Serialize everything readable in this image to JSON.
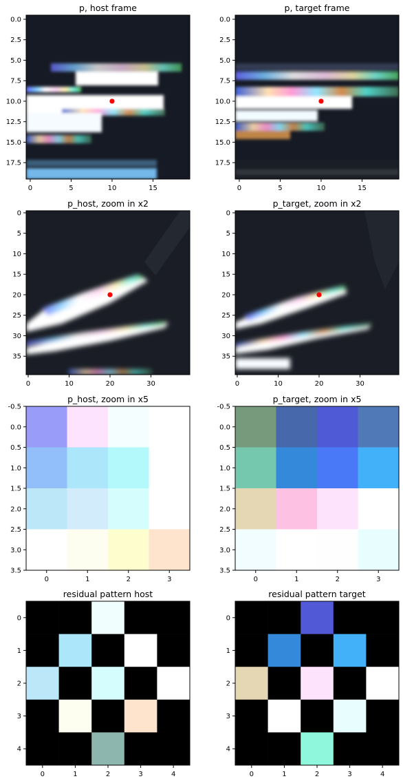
{
  "figure": {
    "colors": {
      "dark": "#141620",
      "axis": "#000000"
    }
  },
  "chart_data": [
    {
      "type": "heatmap",
      "title": "p, host frame",
      "grid": false,
      "ticks": {
        "x": [
          "0",
          "5",
          "10",
          "15"
        ],
        "y": [
          "0.0",
          "2.5",
          "5.0",
          "7.5",
          "10.0",
          "12.5",
          "15.0",
          "17.5"
        ]
      },
      "xlim": [
        -0.5,
        19.5
      ],
      "ylim": [
        19.5,
        -0.5
      ],
      "marker": {
        "x": 10,
        "y": 10,
        "color": "#ff0000"
      },
      "image": "20x20 camera patch: dark background with a bright white streak across rows 7-14 with colored fringes (blue, cyan, pink, yellow, green); colored row near y=5; light blue band near y=18-19"
    },
    {
      "type": "heatmap",
      "title": "p, target frame",
      "grid": false,
      "ticks": {
        "x": [
          "0",
          "5",
          "10",
          "15"
        ],
        "y": [
          "0.0",
          "2.5",
          "5.0",
          "7.5",
          "10.0",
          "12.5",
          "15.0",
          "17.5"
        ]
      },
      "xlim": [
        -0.5,
        19.5
      ],
      "ylim": [
        19.5,
        -0.5
      ],
      "marker": {
        "x": 10,
        "y": 10,
        "color": "#ff0000"
      },
      "image": "20x20 camera patch: dark background with colored band near y=8-9 and bright white streak across rows 10-13 with blue, orange and yellow fringes"
    },
    {
      "type": "heatmap",
      "title": "p_host, zoom in x2",
      "grid": false,
      "ticks": {
        "x": [
          "0",
          "10",
          "20",
          "30"
        ],
        "y": [
          "0",
          "5",
          "10",
          "15",
          "20",
          "25",
          "30",
          "35"
        ]
      },
      "xlim": [
        -0.5,
        39.5
      ],
      "ylim": [
        39.5,
        -0.5
      ],
      "marker": {
        "x": 20,
        "y": 20,
        "color": "#ff0000"
      },
      "image": "40x40 zoomed patch: dark background with two diagonal bright white streaks rising to the right with colorful fringes"
    },
    {
      "type": "heatmap",
      "title": "p_target, zoom in x2",
      "grid": false,
      "ticks": {
        "x": [
          "0",
          "10",
          "20",
          "30"
        ],
        "y": [
          "0",
          "5",
          "10",
          "15",
          "20",
          "25",
          "30",
          "35"
        ]
      },
      "xlim": [
        -0.5,
        39.5
      ],
      "ylim": [
        39.5,
        -0.5
      ],
      "marker": {
        "x": 20,
        "y": 20,
        "color": "#ff0000"
      },
      "image": "40x40 zoomed patch: dark background with two thinner diagonal bright streaks rising to the right with colorful fringes"
    },
    {
      "type": "heatmap",
      "title": "p_host, zoom in x5",
      "grid": false,
      "ticks": {
        "x": [
          "0",
          "1",
          "2",
          "3"
        ],
        "y": [
          "-0.5",
          "0.0",
          "0.5",
          "1.0",
          "1.5",
          "2.0",
          "2.5",
          "3.0",
          "3.5"
        ]
      },
      "xlim": [
        -0.5,
        3.5
      ],
      "ylim": [
        3.5,
        -0.5
      ],
      "cells": [
        [
          "#9a9cfa",
          "#fde3fd",
          "#f5feff",
          "#ffffff"
        ],
        [
          "#92befa",
          "#ace6fb",
          "#b3f9fb",
          "#ffffff"
        ],
        [
          "#bbe7f9",
          "#d2ecfc",
          "#d6fdfd",
          "#ffffff"
        ],
        [
          "#ffffff",
          "#fefef0",
          "#fefdcd",
          "#fee4cd"
        ]
      ]
    },
    {
      "type": "heatmap",
      "title": "p_target, zoom in x5",
      "grid": false,
      "ticks": {
        "x": [
          "0",
          "1",
          "2",
          "3"
        ],
        "y": [
          "-0.5",
          "0.0",
          "0.5",
          "1.0",
          "1.5",
          "2.0",
          "2.5",
          "3.0",
          "3.5"
        ]
      },
      "xlim": [
        -0.5,
        3.5
      ],
      "ylim": [
        3.5,
        -0.5
      ],
      "cells": [
        [
          "#789a7c",
          "#4768ab",
          "#4f5ad6",
          "#4f7ab7"
        ],
        [
          "#75c8ae",
          "#3589db",
          "#4a79f8",
          "#43b0fa"
        ],
        [
          "#e6d7b4",
          "#fdc2e3",
          "#fee3fd",
          "#ffffff"
        ],
        [
          "#f1fdfe",
          "#ffffff",
          "#fefefe",
          "#e8fdfe"
        ]
      ]
    },
    {
      "type": "heatmap",
      "title": "residual pattern host",
      "grid": false,
      "ticks": {
        "x": [
          "0",
          "1",
          "2",
          "3",
          "4"
        ],
        "y": [
          "0",
          "1",
          "2",
          "3",
          "4"
        ]
      },
      "xlim": [
        -0.5,
        4.5
      ],
      "ylim": [
        4.5,
        -0.5
      ],
      "cells": [
        [
          "#000000",
          "#000000",
          "#f1fefe",
          "#000000",
          "#000000"
        ],
        [
          "#000000",
          "#ace6fb",
          "#000000",
          "#ffffff",
          "#000000"
        ],
        [
          "#bbe7f9",
          "#000000",
          "#d6fdfd",
          "#000000",
          "#ffffff"
        ],
        [
          "#000000",
          "#fefef0",
          "#000000",
          "#fee4cd",
          "#000000"
        ],
        [
          "#000000",
          "#000000",
          "#8db6ae",
          "#000000",
          "#000000"
        ]
      ]
    },
    {
      "type": "heatmap",
      "title": "residual pattern target",
      "grid": false,
      "ticks": {
        "x": [
          "0",
          "1",
          "2",
          "3",
          "4"
        ],
        "y": [
          "0",
          "1",
          "2",
          "3",
          "4"
        ]
      },
      "xlim": [
        -0.5,
        4.5
      ],
      "ylim": [
        4.5,
        -0.5
      ],
      "cells": [
        [
          "#000000",
          "#000000",
          "#5159d6",
          "#000000",
          "#000000"
        ],
        [
          "#000000",
          "#3589db",
          "#000000",
          "#43b0fa",
          "#000000"
        ],
        [
          "#e6d7b4",
          "#000000",
          "#fee3fd",
          "#000000",
          "#ffffff"
        ],
        [
          "#000000",
          "#ffffff",
          "#000000",
          "#e8fdfe",
          "#000000"
        ],
        [
          "#000000",
          "#000000",
          "#8ff7dc",
          "#000000",
          "#000000"
        ]
      ]
    }
  ]
}
